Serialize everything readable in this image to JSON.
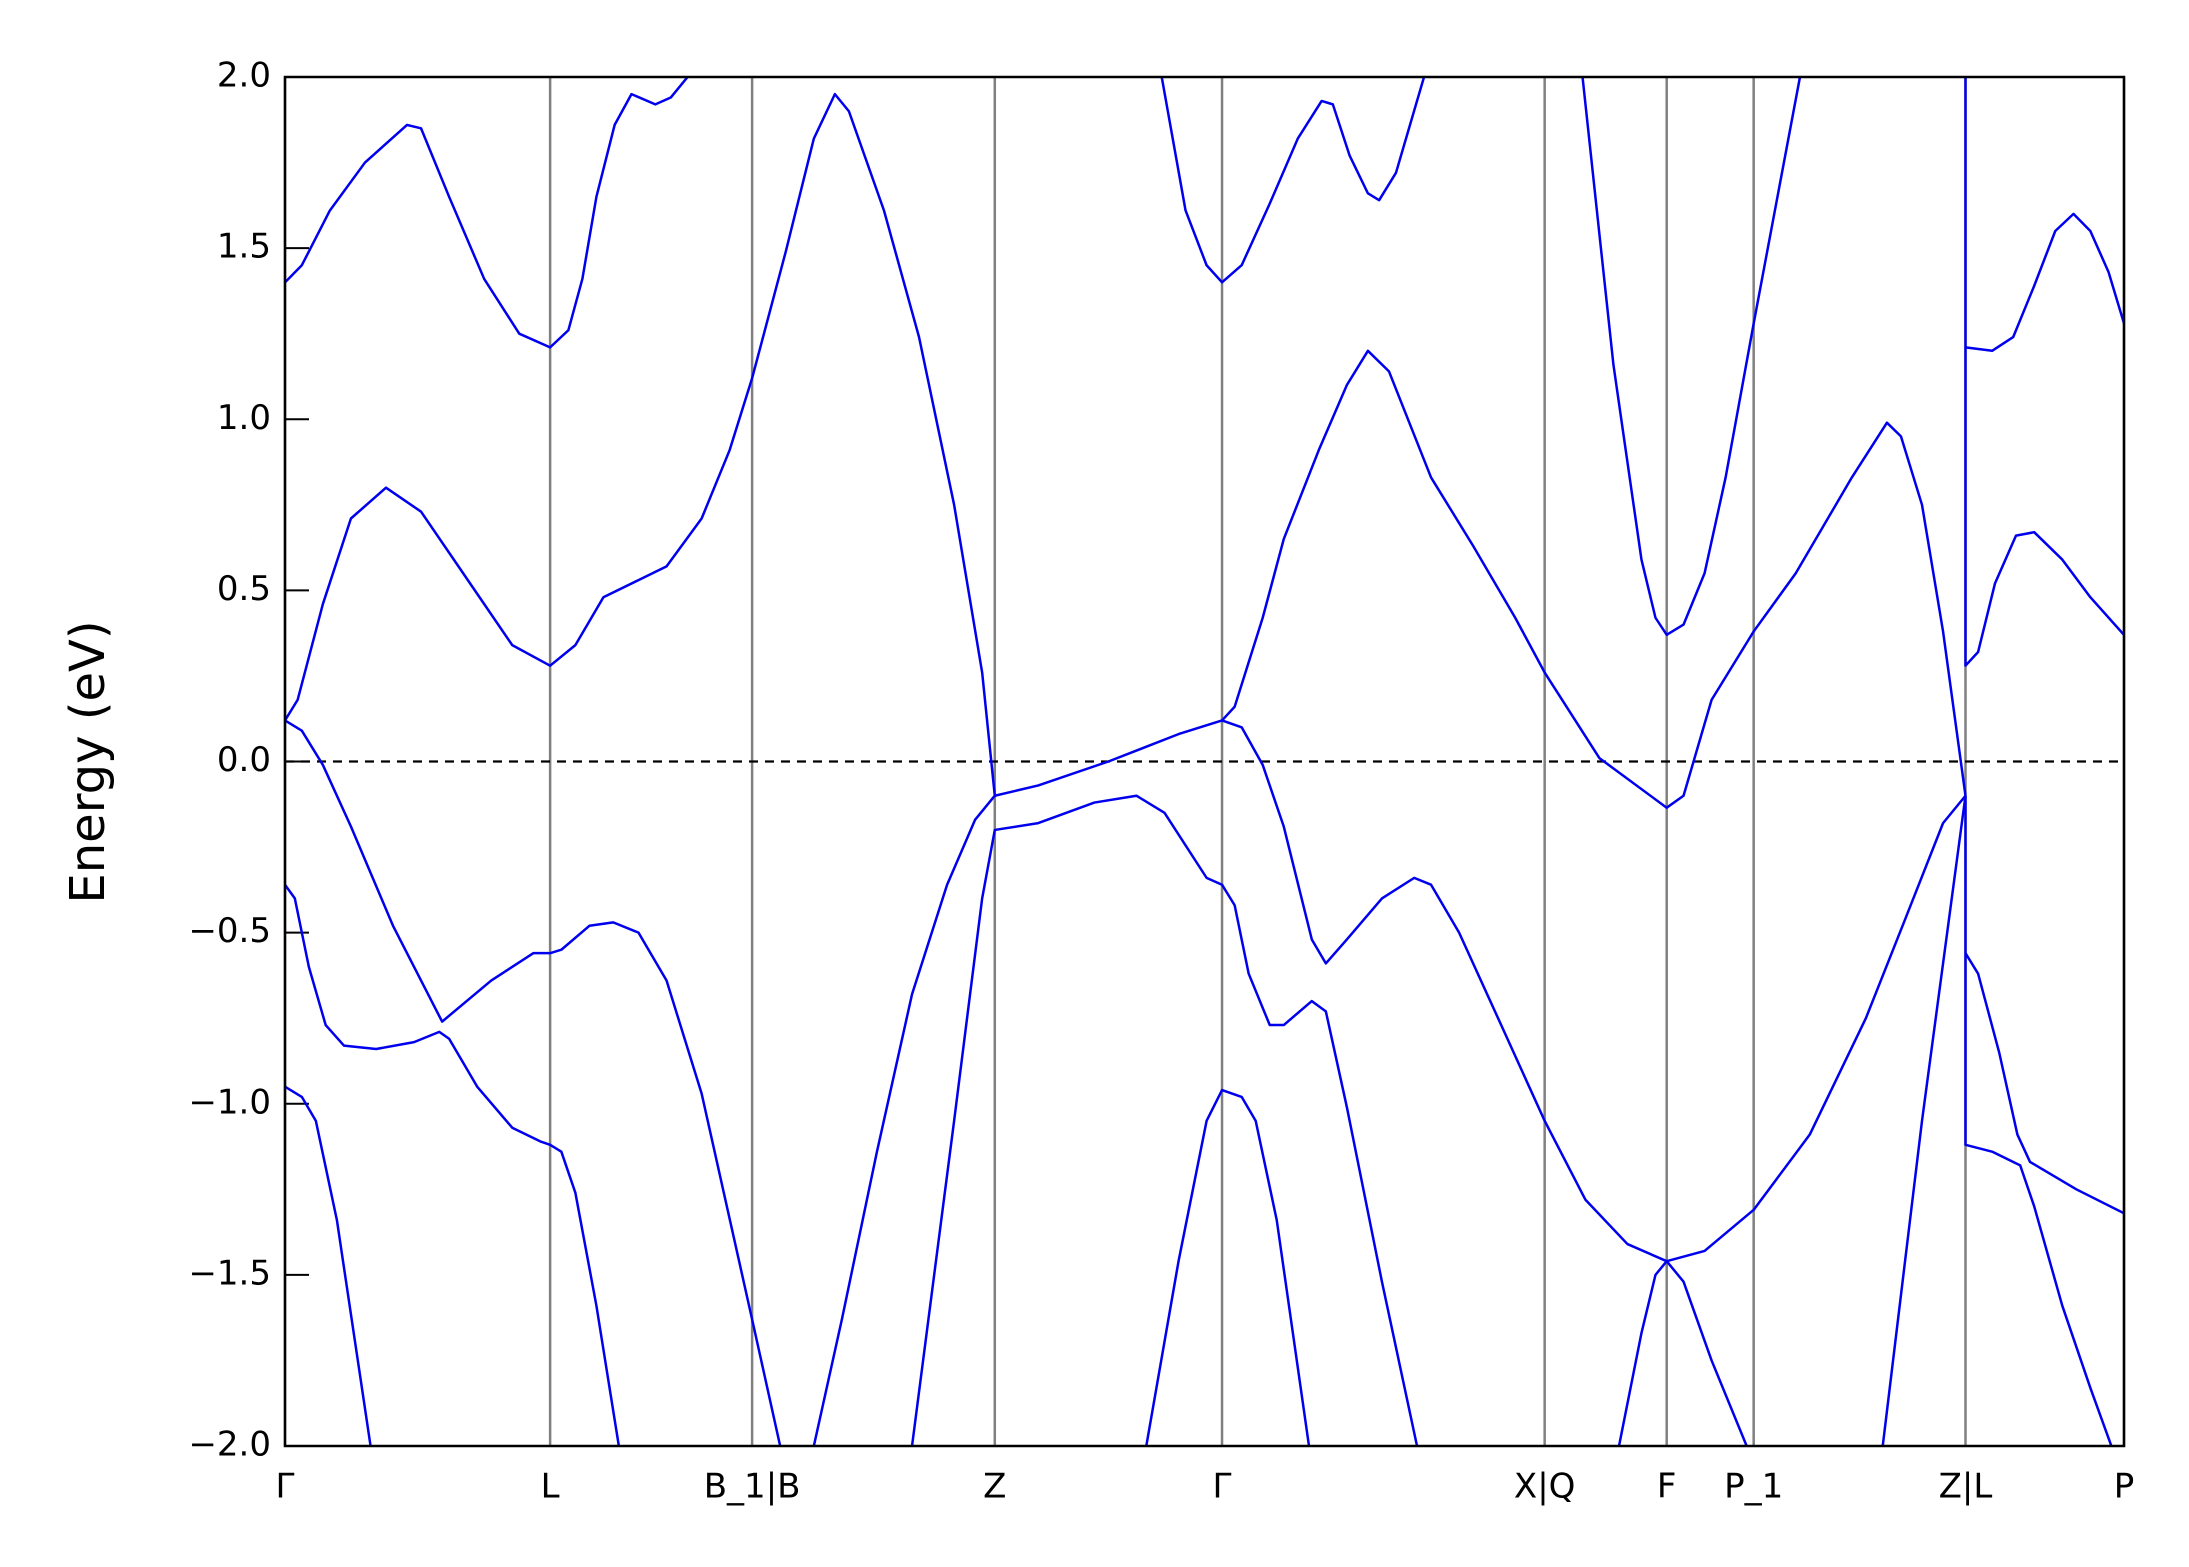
{
  "chart_data": {
    "type": "line",
    "y_label": "Energy (eV)",
    "color": "#0000ee",
    "kpoint_line_color": "#808080",
    "hline": 0,
    "xlim": [
      0,
      13.11
    ],
    "ylim": [
      -2.0,
      2.0
    ],
    "xticks": [
      {
        "value": 0,
        "label": "Γ"
      },
      {
        "value": 1.89,
        "label": "L"
      },
      {
        "value": 3.33,
        "label": "B_1|B"
      },
      {
        "value": 5.06,
        "label": "Z"
      },
      {
        "value": 6.68,
        "label": "Γ"
      },
      {
        "value": 8.98,
        "label": "X|Q"
      },
      {
        "value": 9.85,
        "label": "F"
      },
      {
        "value": 10.47,
        "label": "P_1"
      },
      {
        "value": 11.98,
        "label": "Z|L"
      },
      {
        "value": 13.11,
        "label": "P"
      }
    ],
    "yticks": [
      {
        "value": -2.0,
        "label": "−2.0"
      },
      {
        "value": -1.5,
        "label": "−1.5"
      },
      {
        "value": -1.0,
        "label": "−1.0"
      },
      {
        "value": -0.5,
        "label": "−0.5"
      },
      {
        "value": 0,
        "label": "0.0"
      },
      0.5,
      {
        "value": 1.0,
        "label": "1.0"
      },
      1.5,
      {
        "value": 2.0,
        "label": "2.0"
      }
    ],
    "series": [
      {
        "x": [
          0,
          0.12,
          0.32,
          0.57,
          0.87,
          0.97,
          1.17,
          1.42,
          1.67,
          1.89,
          2.02,
          2.12,
          2.22,
          2.35,
          2.47,
          2.64,
          2.75,
          2.87
        ],
        "values": [
          1.4,
          1.45,
          1.61,
          1.75,
          1.86,
          1.85,
          1.65,
          1.41,
          1.25,
          1.21,
          1.26,
          1.41,
          1.65,
          1.86,
          1.95,
          1.92,
          1.94,
          2.0
        ]
      },
      {
        "x": [
          0,
          0.09,
          0.27,
          0.47,
          0.72,
          0.97,
          1.27,
          1.62,
          1.89,
          2.07,
          2.27,
          2.52,
          2.72,
          2.97,
          3.17,
          3.33,
          3.57,
          3.77,
          3.92,
          4.02,
          4.27,
          4.52,
          4.77,
          4.97,
          5.06,
          5.37,
          5.87,
          6.37,
          6.68,
          6.77,
          6.97,
          7.12,
          7.37,
          7.57,
          7.72,
          7.87,
          8.17,
          8.47,
          8.77,
          8.98,
          9.37,
          9.85,
          9.97,
          10.17,
          10.47,
          10.77,
          11.17,
          11.42,
          11.52,
          11.67,
          11.82,
          11.98
        ],
        "values": [
          0.12,
          0.18,
          0.46,
          0.71,
          0.8,
          0.73,
          0.55,
          0.34,
          0.28,
          0.34,
          0.48,
          0.53,
          0.57,
          0.71,
          0.91,
          1.12,
          1.49,
          1.82,
          1.95,
          1.9,
          1.61,
          1.24,
          0.75,
          0.26,
          -0.1,
          -0.07,
          0,
          0.08,
          0.12,
          0.16,
          0.42,
          0.65,
          0.91,
          1.1,
          1.2,
          1.14,
          0.83,
          0.63,
          0.42,
          0.26,
          0.01,
          -0.135,
          -0.1,
          0.18,
          0.38,
          0.55,
          0.83,
          0.99,
          0.95,
          0.75,
          0.38,
          -0.1
        ]
      },
      {
        "x": [
          0,
          0.12,
          0.27,
          0.47,
          0.77,
          1.12,
          1.47,
          1.77,
          1.89,
          1.97,
          2.17,
          2.34,
          2.52,
          2.72,
          2.97,
          3.33,
          3.53
        ],
        "values": [
          0.12,
          0.09,
          -0.01,
          -0.19,
          -0.48,
          -0.76,
          -0.64,
          -0.56,
          -0.56,
          -0.55,
          -0.48,
          -0.47,
          -0.5,
          -0.64,
          -0.97,
          -1.63,
          -2.0
        ]
      },
      {
        "x": [
          0,
          0.07,
          0.17,
          0.29,
          0.42,
          0.65,
          0.92,
          1.1,
          1.17,
          1.37,
          1.62,
          1.82,
          1.89,
          1.97,
          2.07,
          2.22,
          2.38
        ],
        "values": [
          -0.36,
          -0.4,
          -0.6,
          -0.77,
          -0.83,
          -0.84,
          -0.82,
          -0.79,
          -0.81,
          -0.95,
          -1.07,
          -1.11,
          -1.12,
          -1.14,
          -1.26,
          -1.59,
          -2.0
        ]
      },
      {
        "x": [
          0,
          0.12,
          0.22,
          0.37,
          0.49,
          0.61
        ],
        "values": [
          -0.95,
          -0.98,
          -1.05,
          -1.34,
          -1.67,
          -2.0
        ]
      },
      {
        "x": [
          3.77,
          3.97,
          4.22,
          4.47,
          4.72,
          4.92,
          5.06
        ],
        "values": [
          -2.0,
          -1.63,
          -1.14,
          -0.68,
          -0.36,
          -0.17,
          -0.1
        ]
      },
      {
        "x": [
          4.47,
          4.77,
          4.97,
          5.06,
          5.37,
          5.77,
          6.07,
          6.27,
          6.57,
          6.68,
          6.77,
          6.87,
          7.02,
          7.12,
          7.32,
          7.42,
          7.57,
          7.82,
          8.07
        ],
        "values": [
          -2.0,
          -1.05,
          -0.4,
          -0.2,
          -0.18,
          -0.12,
          -0.1,
          -0.15,
          -0.34,
          -0.36,
          -0.42,
          -0.62,
          -0.77,
          -0.77,
          -0.7,
          -0.73,
          -1.01,
          -1.52,
          -2.0
        ]
      },
      {
        "x": [
          6.68,
          6.82,
          6.97,
          7.12,
          7.32,
          7.42,
          7.57,
          7.82,
          8.05,
          8.17,
          8.37,
          8.67,
          8.98,
          9.27,
          9.57,
          9.85,
          10.12,
          10.47,
          10.87,
          11.27,
          11.57,
          11.82,
          11.98
        ],
        "values": [
          0.12,
          0.1,
          -0.01,
          -0.19,
          -0.52,
          -0.59,
          -0.52,
          -0.4,
          -0.34,
          -0.36,
          -0.5,
          -0.77,
          -1.05,
          -1.28,
          -1.41,
          -1.46,
          -1.43,
          -1.31,
          -1.09,
          -0.75,
          -0.44,
          -0.18,
          -0.1
        ]
      },
      {
        "x": [
          6.14,
          6.37,
          6.57,
          6.68,
          6.82,
          6.92,
          7.07,
          7.3
        ],
        "values": [
          -2.0,
          -1.46,
          -1.05,
          -0.96,
          -0.98,
          -1.05,
          -1.34,
          -2.0
        ]
      },
      {
        "x": [
          6.25,
          6.42,
          6.57,
          6.68,
          6.82,
          7.02,
          7.22,
          7.39,
          7.47,
          7.59,
          7.72,
          7.8,
          7.92,
          8.12
        ],
        "values": [
          2.0,
          1.61,
          1.45,
          1.4,
          1.45,
          1.63,
          1.82,
          1.93,
          1.92,
          1.77,
          1.66,
          1.64,
          1.72,
          2.0
        ]
      },
      {
        "x": [
          9.25,
          9.47,
          9.67,
          9.77,
          9.85,
          9.97,
          10.12,
          10.27,
          10.47,
          10.8
        ],
        "values": [
          2.0,
          1.16,
          0.59,
          0.42,
          0.37,
          0.4,
          0.55,
          0.83,
          1.28,
          2.0
        ]
      },
      {
        "x": [
          9.51,
          9.67,
          9.77,
          9.85,
          9.97,
          10.17,
          10.42
        ],
        "values": [
          -2.0,
          -1.67,
          -1.5,
          -1.46,
          -1.52,
          -1.75,
          -2.0
        ]
      },
      {
        "x": [
          11.39,
          11.67,
          11.98
        ],
        "values": [
          -2.0,
          -1.05,
          -0.1
        ]
      },
      {
        "x": [
          11.98,
          11.98,
          12.17,
          12.32,
          12.47,
          12.62,
          12.75,
          12.87,
          13.0,
          13.11
        ],
        "values": [
          2.0,
          1.21,
          1.2,
          1.24,
          1.39,
          1.55,
          1.6,
          1.55,
          1.43,
          1.28
        ]
      },
      {
        "x": [
          11.98,
          11.98,
          12.07,
          12.19,
          12.34,
          12.47,
          12.67,
          12.87,
          13.11
        ],
        "values": [
          1.21,
          0.28,
          0.32,
          0.52,
          0.66,
          0.67,
          0.59,
          0.48,
          0.37
        ]
      },
      {
        "x": [
          11.98,
          11.98,
          12.07,
          12.22,
          12.35,
          12.44,
          12.77,
          13.11
        ],
        "values": [
          -0.1,
          -0.56,
          -0.62,
          -0.85,
          -1.09,
          -1.17,
          -1.25,
          -1.32
        ]
      },
      {
        "x": [
          11.98,
          11.98,
          12.17,
          12.37,
          12.47,
          12.67,
          12.87,
          13.02
        ],
        "values": [
          -0.56,
          -1.12,
          -1.14,
          -1.18,
          -1.3,
          -1.59,
          -1.83,
          -2.0
        ]
      }
    ]
  }
}
